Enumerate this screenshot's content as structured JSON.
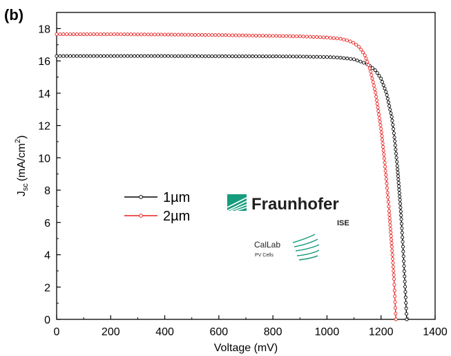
{
  "panel_label": "(b)",
  "logos": {
    "fraunhofer_name": "Fraunhofer",
    "fraunhofer_sub": "ISE",
    "callab_name": "CalLab",
    "callab_sub": "PV Cells"
  },
  "colors": {
    "series_1": "#000000",
    "series_2": "#e8201f",
    "logo_green": "#179c7d"
  },
  "chart_data": {
    "type": "line",
    "xlabel": "Voltage (mV)",
    "ylabel_main": "J",
    "ylabel_sub": "sc",
    "ylabel_unit": "(mA/cm",
    "ylabel_sup": "2",
    "ylabel_close": ")",
    "xlim": [
      0,
      1400
    ],
    "ylim": [
      0,
      19
    ],
    "xticks": [
      "0",
      "200",
      "400",
      "600",
      "800",
      "1000",
      "1200",
      "1400"
    ],
    "yticks": [
      "0",
      "2",
      "4",
      "6",
      "8",
      "10",
      "12",
      "14",
      "16",
      "18"
    ],
    "grid": false,
    "legend_position": "middle-left",
    "series": [
      {
        "name": "1µm",
        "color": "#000000",
        "points": [
          [
            0,
            16.3
          ],
          [
            200,
            16.3
          ],
          [
            400,
            16.3
          ],
          [
            600,
            16.29
          ],
          [
            800,
            16.28
          ],
          [
            900,
            16.27
          ],
          [
            1000,
            16.24
          ],
          [
            1050,
            16.2
          ],
          [
            1100,
            16.1
          ],
          [
            1150,
            15.8
          ],
          [
            1180,
            15.4
          ],
          [
            1200,
            14.9
          ],
          [
            1220,
            14.0
          ],
          [
            1240,
            12.5
          ],
          [
            1250,
            11.2
          ],
          [
            1260,
            9.5
          ],
          [
            1270,
            7.4
          ],
          [
            1275,
            6.2
          ],
          [
            1280,
            4.8
          ],
          [
            1285,
            3.3
          ],
          [
            1290,
            1.7
          ],
          [
            1295,
            0.0
          ]
        ]
      },
      {
        "name": "2µm",
        "color": "#e8201f",
        "points": [
          [
            0,
            17.65
          ],
          [
            200,
            17.65
          ],
          [
            400,
            17.63
          ],
          [
            600,
            17.6
          ],
          [
            800,
            17.55
          ],
          [
            900,
            17.52
          ],
          [
            1000,
            17.45
          ],
          [
            1050,
            17.37
          ],
          [
            1080,
            17.25
          ],
          [
            1100,
            17.1
          ],
          [
            1120,
            16.85
          ],
          [
            1140,
            16.35
          ],
          [
            1160,
            15.45
          ],
          [
            1180,
            14.0
          ],
          [
            1200,
            11.8
          ],
          [
            1210,
            10.3
          ],
          [
            1220,
            8.6
          ],
          [
            1230,
            6.7
          ],
          [
            1240,
            4.5
          ],
          [
            1248,
            2.5
          ],
          [
            1255,
            0.0
          ]
        ]
      }
    ]
  }
}
